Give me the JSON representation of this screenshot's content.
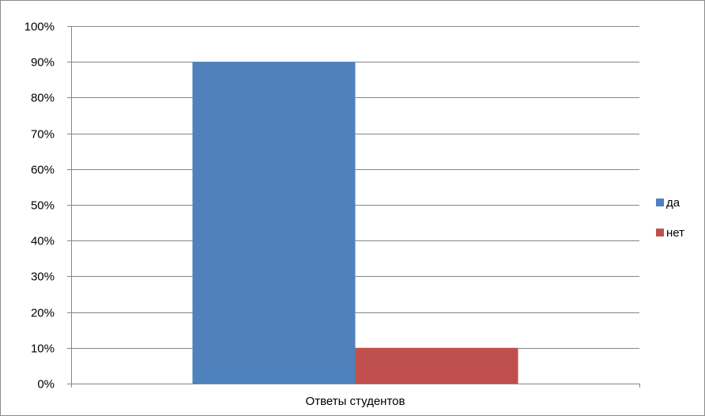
{
  "chart_data": {
    "type": "bar",
    "categories": [
      "Ответы студентов"
    ],
    "series": [
      {
        "name": "да",
        "values": [
          0.9
        ],
        "color": "#4F81BD"
      },
      {
        "name": "нет",
        "values": [
          0.1
        ],
        "color": "#C0504D"
      }
    ],
    "title": "",
    "xlabel": "",
    "ylabel": "",
    "ylim": [
      0,
      1
    ],
    "yticks": [
      "0%",
      "10%",
      "20%",
      "30%",
      "40%",
      "50%",
      "60%",
      "70%",
      "80%",
      "90%",
      "100%"
    ],
    "grid": true,
    "legend_position": "right"
  }
}
